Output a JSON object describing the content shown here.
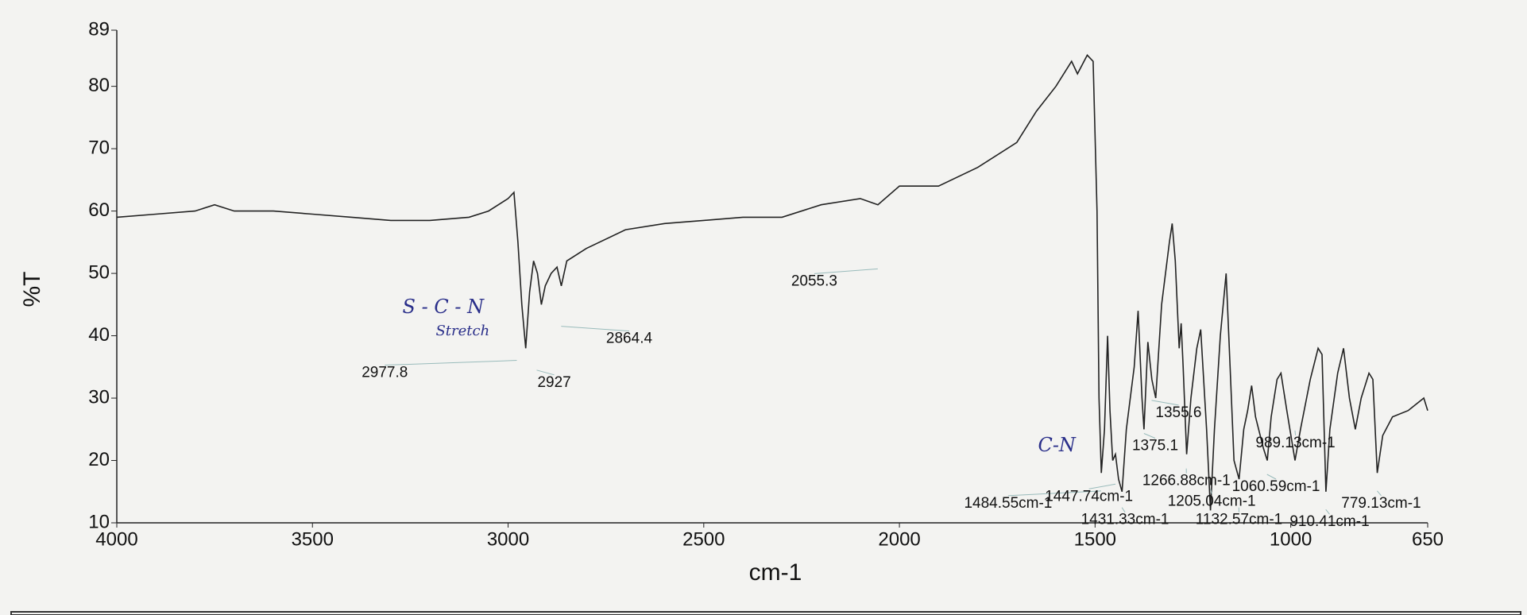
{
  "chart_data": {
    "type": "line",
    "x_label": "cm-1",
    "y_label": "%T",
    "xlim": [
      4000,
      650
    ],
    "ylim": [
      10,
      89
    ],
    "xticks": [
      4000,
      3500,
      3000,
      2500,
      2000,
      1500,
      1000,
      650
    ],
    "yticks": [
      10,
      20,
      30,
      40,
      50,
      60,
      70,
      80,
      89
    ],
    "series": [
      {
        "color": "#222222",
        "x": [
          4000,
          3900,
          3800,
          3750,
          3700,
          3600,
          3500,
          3400,
          3300,
          3200,
          3100,
          3050,
          3000,
          2985,
          2975,
          2965,
          2955,
          2945,
          2935,
          2925,
          2915,
          2905,
          2890,
          2875,
          2864,
          2850,
          2800,
          2700,
          2600,
          2500,
          2400,
          2300,
          2200,
          2100,
          2055,
          2000,
          1900,
          1800,
          1700,
          1650,
          1600,
          1560,
          1545,
          1520,
          1505,
          1495,
          1490,
          1484,
          1476,
          1468,
          1462,
          1455,
          1448,
          1440,
          1431,
          1420,
          1400,
          1390,
          1380,
          1375,
          1365,
          1355,
          1345,
          1330,
          1310,
          1303,
          1295,
          1285,
          1280,
          1275,
          1266,
          1255,
          1240,
          1230,
          1215,
          1205,
          1195,
          1180,
          1165,
          1155,
          1145,
          1132,
          1120,
          1110,
          1100,
          1090,
          1070,
          1060,
          1050,
          1035,
          1025,
          1010,
          989,
          975,
          950,
          930,
          920,
          910,
          900,
          880,
          865,
          850,
          835,
          820,
          800,
          790,
          779,
          765,
          740,
          700,
          680,
          660,
          650
        ],
        "values": [
          59,
          59.5,
          60,
          61,
          60,
          60,
          59.5,
          59,
          58.5,
          58.5,
          59,
          60,
          62,
          63,
          55,
          45,
          38,
          47,
          52,
          50,
          45,
          48,
          50,
          51,
          48,
          52,
          54,
          57,
          58,
          58.5,
          59,
          59,
          61,
          62,
          61,
          64,
          64,
          67,
          71,
          76,
          80,
          84,
          82,
          85,
          84,
          60,
          30,
          18,
          25,
          40,
          28,
          20,
          21,
          17,
          15,
          25,
          35,
          44,
          30,
          25,
          39,
          33,
          30,
          45,
          55,
          58,
          52,
          38,
          42,
          35,
          21,
          30,
          38,
          41,
          25,
          12,
          25,
          40,
          50,
          35,
          20,
          17,
          25,
          28,
          32,
          27,
          22,
          20,
          27,
          33,
          34,
          28,
          20,
          25,
          33,
          38,
          37,
          15,
          25,
          34,
          38,
          30,
          25,
          30,
          34,
          33,
          18,
          24,
          27,
          28,
          29,
          30,
          28
        ]
      }
    ],
    "annotations": [
      {
        "label": "2977.8",
        "x": 2977.8
      },
      {
        "label": "2927",
        "x": 2927
      },
      {
        "label": "2864.4",
        "x": 2864.4
      },
      {
        "label": "2055.3",
        "x": 2055.3
      },
      {
        "label": "1355.6",
        "x": 1355.6
      },
      {
        "label": "1375.1",
        "x": 1375.1
      },
      {
        "label": "1484.55cm-1",
        "x": 1484.55
      },
      {
        "label": "1447.74cm-1",
        "x": 1447.74
      },
      {
        "label": "1431.33cm-1",
        "x": 1431.33
      },
      {
        "label": "1266.88cm-1",
        "x": 1266.88
      },
      {
        "label": "1205.04cm-1",
        "x": 1205.04
      },
      {
        "label": "1132.57cm-1",
        "x": 1132.57
      },
      {
        "label": "1060.59cm-1",
        "x": 1060.59
      },
      {
        "label": "989.13cm-1",
        "x": 989.13
      },
      {
        "label": "910.41cm-1",
        "x": 910.41
      },
      {
        "label": "779.13cm-1",
        "x": 779.13
      }
    ],
    "handwritten_notes": [
      "S - C - N",
      "Stretch",
      "C-N"
    ]
  }
}
